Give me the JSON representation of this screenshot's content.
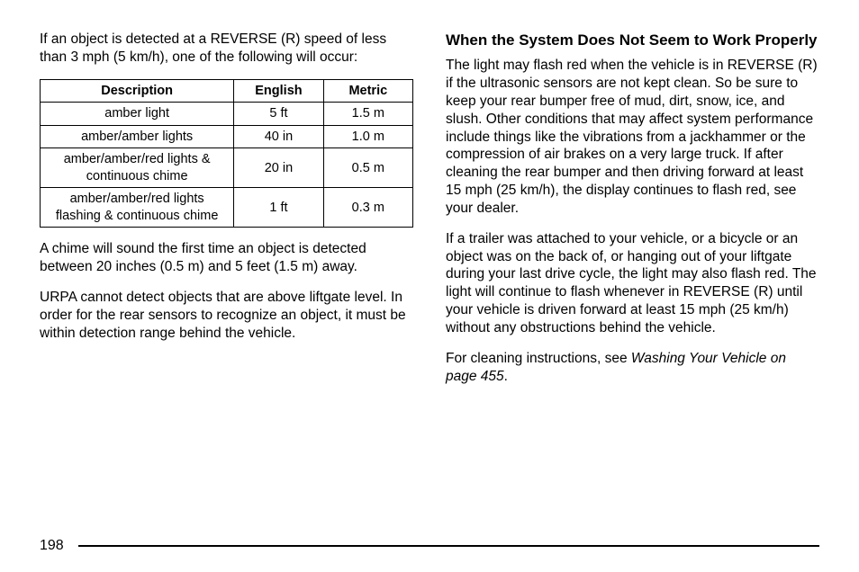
{
  "left": {
    "intro": "If an object is detected at a REVERSE (R) speed of less than 3 mph (5 km/h), one of the following will occur:",
    "table": {
      "headers": {
        "desc": "Description",
        "eng": "English",
        "met": "Metric"
      },
      "rows": [
        {
          "desc": "amber light",
          "eng": "5 ft",
          "met": "1.5 m"
        },
        {
          "desc": "amber/amber lights",
          "eng": "40 in",
          "met": "1.0 m"
        },
        {
          "desc": "amber/amber/red lights & continuous chime",
          "eng": "20 in",
          "met": "0.5 m"
        },
        {
          "desc": "amber/amber/red lights flashing & continuous chime",
          "eng": "1 ft",
          "met": "0.3 m"
        }
      ]
    },
    "p2": "A chime will sound the first time an object is detected between 20 inches (0.5 m) and 5 feet (1.5 m) away.",
    "p3": "URPA cannot detect objects that are above liftgate level. In order for the rear sensors to recognize an object, it must be within detection range behind the vehicle."
  },
  "right": {
    "heading": "When the System Does Not Seem to Work Properly",
    "p1": "The light may flash red when the vehicle is in REVERSE (R) if the ultrasonic sensors are not kept clean. So be sure to keep your rear bumper free of mud, dirt, snow, ice, and slush. Other conditions that may affect system performance include things like the vibrations from a jackhammer or the compression of air brakes on a very large truck. If after cleaning the rear bumper and then driving forward at least 15 mph (25 km/h), the display continues to flash red, see your dealer.",
    "p2": "If a trailer was attached to your vehicle, or a bicycle or an object was on the back of, or hanging out of your liftgate during your last drive cycle, the light may also flash red. The light will continue to flash whenever in REVERSE (R) until your vehicle is driven forward at least 15 mph (25 km/h) without any obstructions behind the vehicle.",
    "p3_a": "For cleaning instructions, see ",
    "p3_b": "Washing Your Vehicle on page 455",
    "p3_c": "."
  },
  "pageNumber": "198"
}
